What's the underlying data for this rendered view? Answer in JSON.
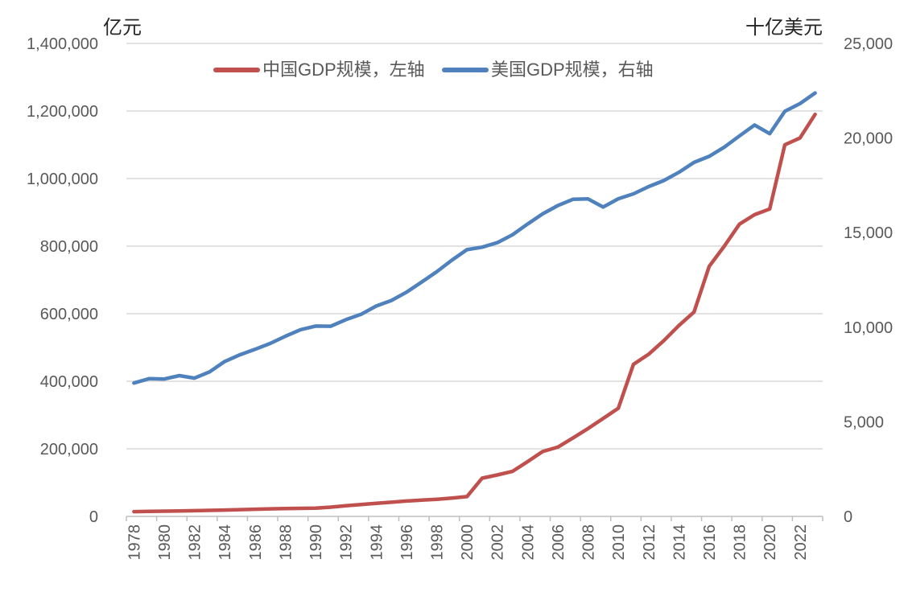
{
  "chart": {
    "left_axis_title": "亿元",
    "right_axis_title": "十亿美元",
    "background_color": "#ffffff",
    "gridline_color": "#d9d9d9",
    "axisline_color": "#bfbfbf",
    "tick_label_color": "#595959",
    "axis_title_color": "#262626"
  },
  "chart_data": {
    "type": "line",
    "title": "",
    "x": [
      1978,
      1979,
      1980,
      1981,
      1982,
      1983,
      1984,
      1985,
      1986,
      1987,
      1988,
      1989,
      1990,
      1991,
      1992,
      1993,
      1994,
      1995,
      1996,
      1997,
      1998,
      1999,
      2000,
      2001,
      2002,
      2003,
      2004,
      2005,
      2006,
      2007,
      2008,
      2009,
      2010,
      2011,
      2012,
      2013,
      2014,
      2015,
      2016,
      2017,
      2018,
      2019,
      2020,
      2021,
      2022,
      2023
    ],
    "x_tick_labels": [
      "1978",
      "1980",
      "1982",
      "1984",
      "1986",
      "1988",
      "1990",
      "1992",
      "1994",
      "1996",
      "1998",
      "2000",
      "2002",
      "2004",
      "2006",
      "2008",
      "2010",
      "2012",
      "2014",
      "2016",
      "2018",
      "2020",
      "2022"
    ],
    "left_axis": {
      "title": "亿元",
      "min": 0,
      "max": 1400000,
      "step": 200000,
      "tick_labels": [
        "0",
        "200,000",
        "400,000",
        "600,000",
        "800,000",
        "1,000,000",
        "1,200,000",
        "1,400,000"
      ]
    },
    "right_axis": {
      "title": "十亿美元",
      "min": 0,
      "max": 25000,
      "step": 5000,
      "tick_labels": [
        "0",
        "5,000",
        "10,000",
        "15,000",
        "20,000",
        "25,000"
      ]
    },
    "grid": true,
    "legend_position": "top",
    "series": [
      {
        "name": "中国GDP规模，左轴",
        "axis": "left",
        "color": "#C0504D",
        "values": [
          14000,
          14800,
          15500,
          16200,
          17000,
          17900,
          18900,
          20000,
          21200,
          22300,
          23200,
          23800,
          24500,
          27500,
          31500,
          35000,
          38500,
          42000,
          45500,
          48000,
          50500,
          54000,
          58500,
          113000,
          122500,
          133000,
          162000,
          192000,
          205000,
          232000,
          260000,
          290000,
          320000,
          450000,
          480000,
          520000,
          565000,
          605000,
          740000,
          800000,
          865000,
          893000,
          910000,
          1100000,
          1120000,
          1190000
        ]
      },
      {
        "name": "美国GDP规模，右轴",
        "axis": "right",
        "color": "#4F81BD",
        "values": [
          7050,
          7280,
          7260,
          7440,
          7310,
          7640,
          8190,
          8540,
          8830,
          9140,
          9520,
          9870,
          10060,
          10050,
          10400,
          10680,
          11120,
          11410,
          11850,
          12380,
          12930,
          13540,
          14100,
          14230,
          14470,
          14880,
          15450,
          15990,
          16430,
          16760,
          16780,
          16350,
          16790,
          17050,
          17430,
          17750,
          18190,
          18710,
          19030,
          19520,
          20110,
          20690,
          20230,
          21410,
          21820,
          22380
        ]
      }
    ]
  }
}
